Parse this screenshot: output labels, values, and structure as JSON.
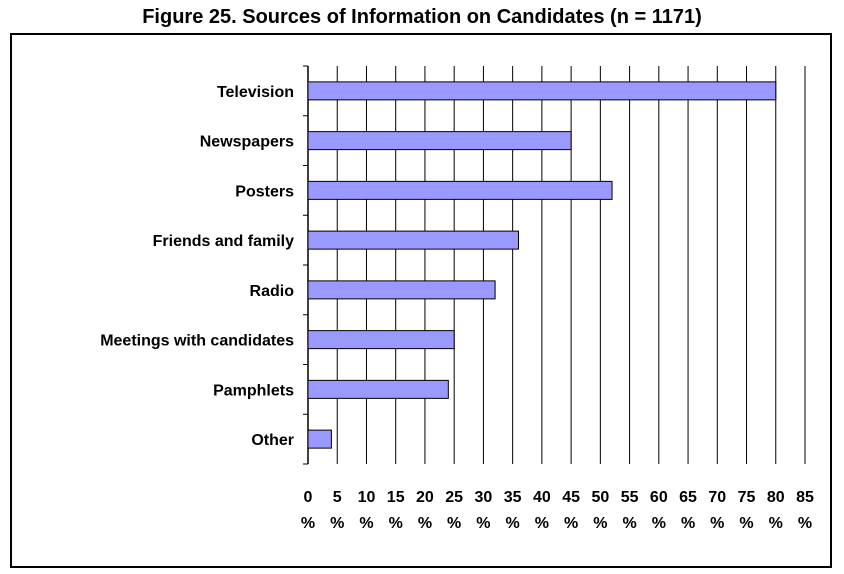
{
  "chart_data": {
    "type": "bar",
    "orientation": "horizontal",
    "title": "Figure 25. Sources of Information on Candidates (n = 1171)",
    "categories": [
      "Television",
      "Newspapers",
      "Posters",
      "Friends and family",
      "Radio",
      "Meetings with candidates",
      "Pamphlets",
      "Other"
    ],
    "values": [
      80,
      45,
      52,
      36,
      32,
      25,
      24,
      4
    ],
    "xlim": [
      0,
      85
    ],
    "xticks": [
      0,
      5,
      10,
      15,
      20,
      25,
      30,
      35,
      40,
      45,
      50,
      55,
      60,
      65,
      70,
      75,
      80,
      85
    ],
    "tick_unit": "%",
    "grid": true,
    "bar_color": "#9999ff",
    "bar_edge_color": "#000000",
    "legend": "none"
  }
}
